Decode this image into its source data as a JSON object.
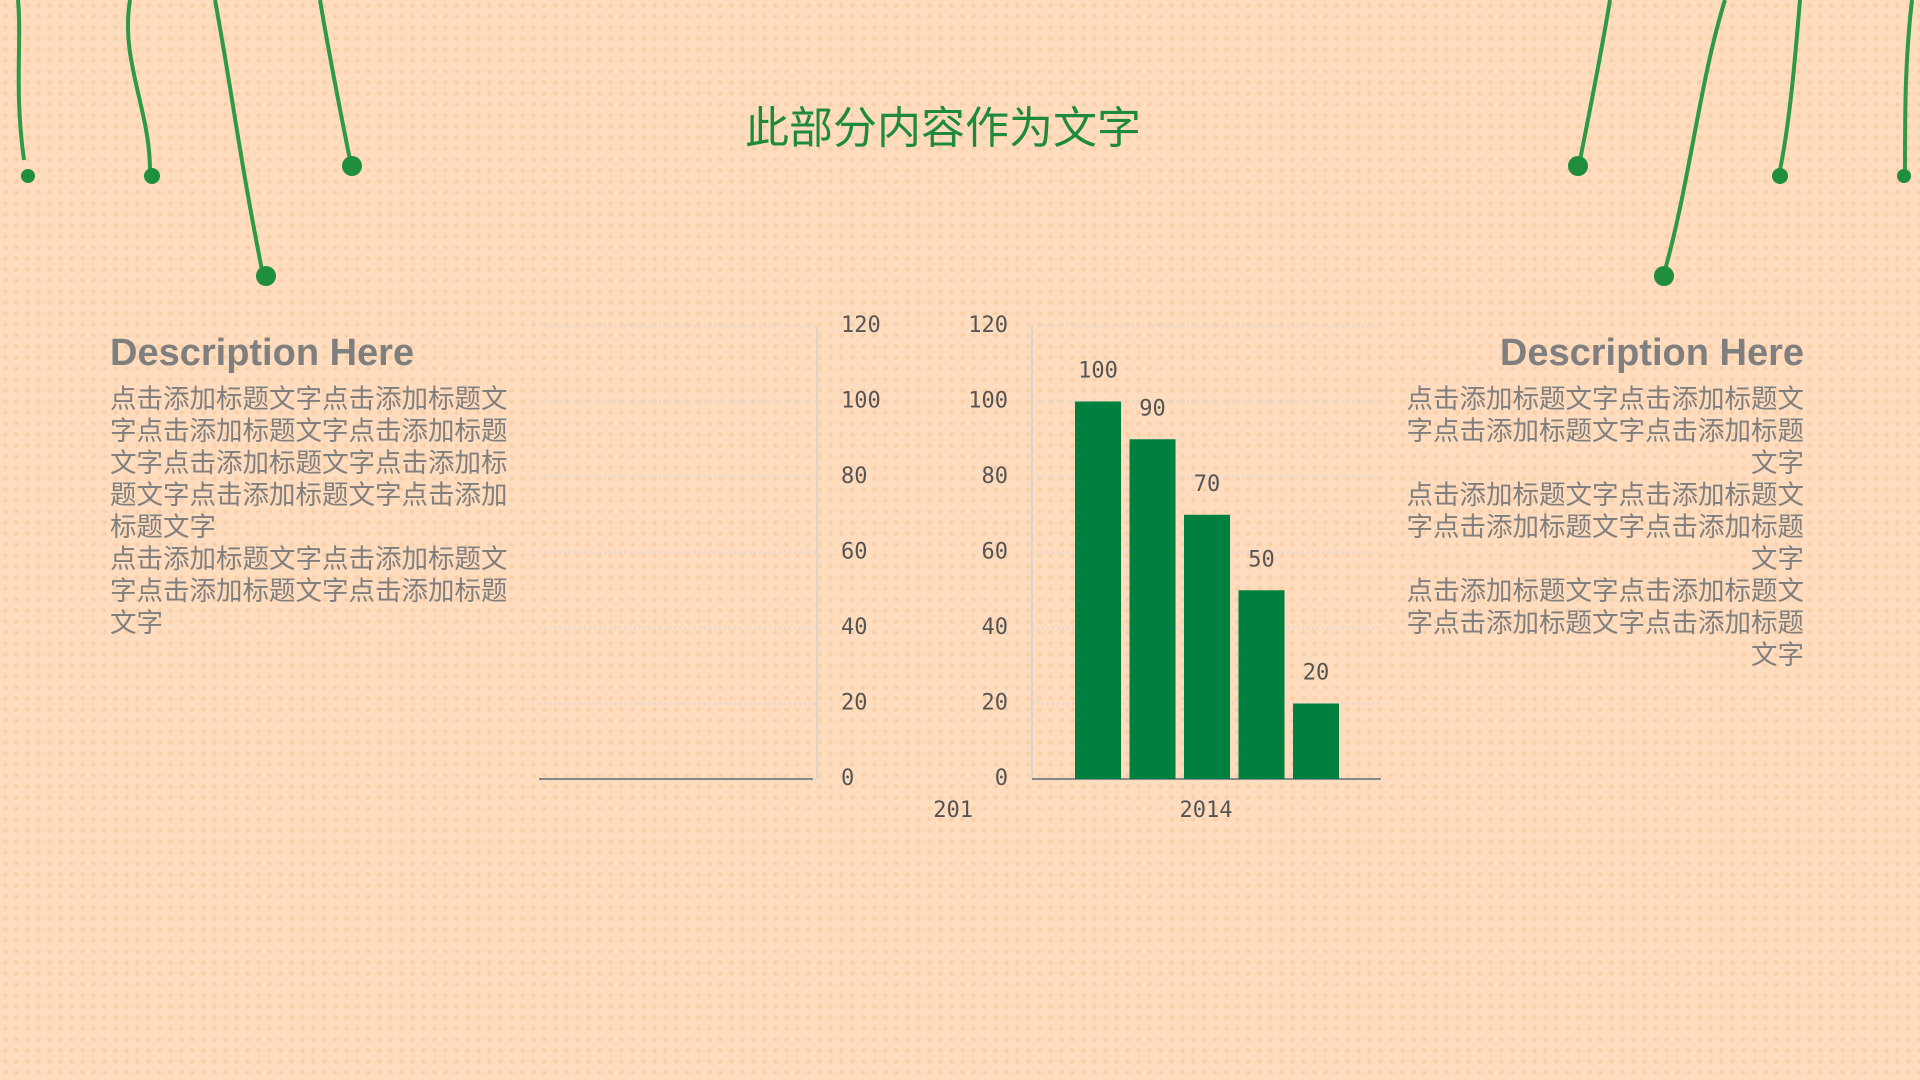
{
  "title": "此部分内容作为文字",
  "left": {
    "heading": "Description Here",
    "paragraphs": [
      "点击添加标题文字点击添加标题文字点击添加标题文字点击添加标题文字点击添加标题文字点击添加标题文字点击添加标题文字点击添加标题文字",
      "点击添加标题文字点击添加标题文字点击添加标题文字点击添加标题文字"
    ]
  },
  "right": {
    "heading": "Description Here",
    "paragraphs": [
      "点击添加标题文字点击添加标题文字点击添加标题文字点击添加标题文字",
      "点击添加标题文字点击添加标题文字点击添加标题文字点击添加标题文字",
      "点击添加标题文字点击添加标题文字点击添加标题文字点击添加标题文字"
    ]
  },
  "chart_data": [
    {
      "type": "bar",
      "categories": [
        "201"
      ],
      "ylim": [
        0,
        120
      ],
      "yticks": [
        0,
        20,
        40,
        60,
        80,
        100,
        120
      ],
      "grid": true
    },
    {
      "type": "bar",
      "categories": [
        "2014"
      ],
      "ylim": [
        0,
        120
      ],
      "yticks": [
        0,
        20,
        40,
        60,
        80,
        100,
        120
      ],
      "grid": true,
      "series": [
        {
          "color": "#00803f",
          "values": [
            100
          ]
        },
        {
          "color": "#00803f",
          "values": [
            90
          ]
        },
        {
          "color": "#00803f",
          "values": [
            70
          ]
        },
        {
          "color": "#00803f",
          "values": [
            50
          ]
        },
        {
          "color": "#00803f",
          "values": [
            20
          ]
        }
      ]
    }
  ]
}
